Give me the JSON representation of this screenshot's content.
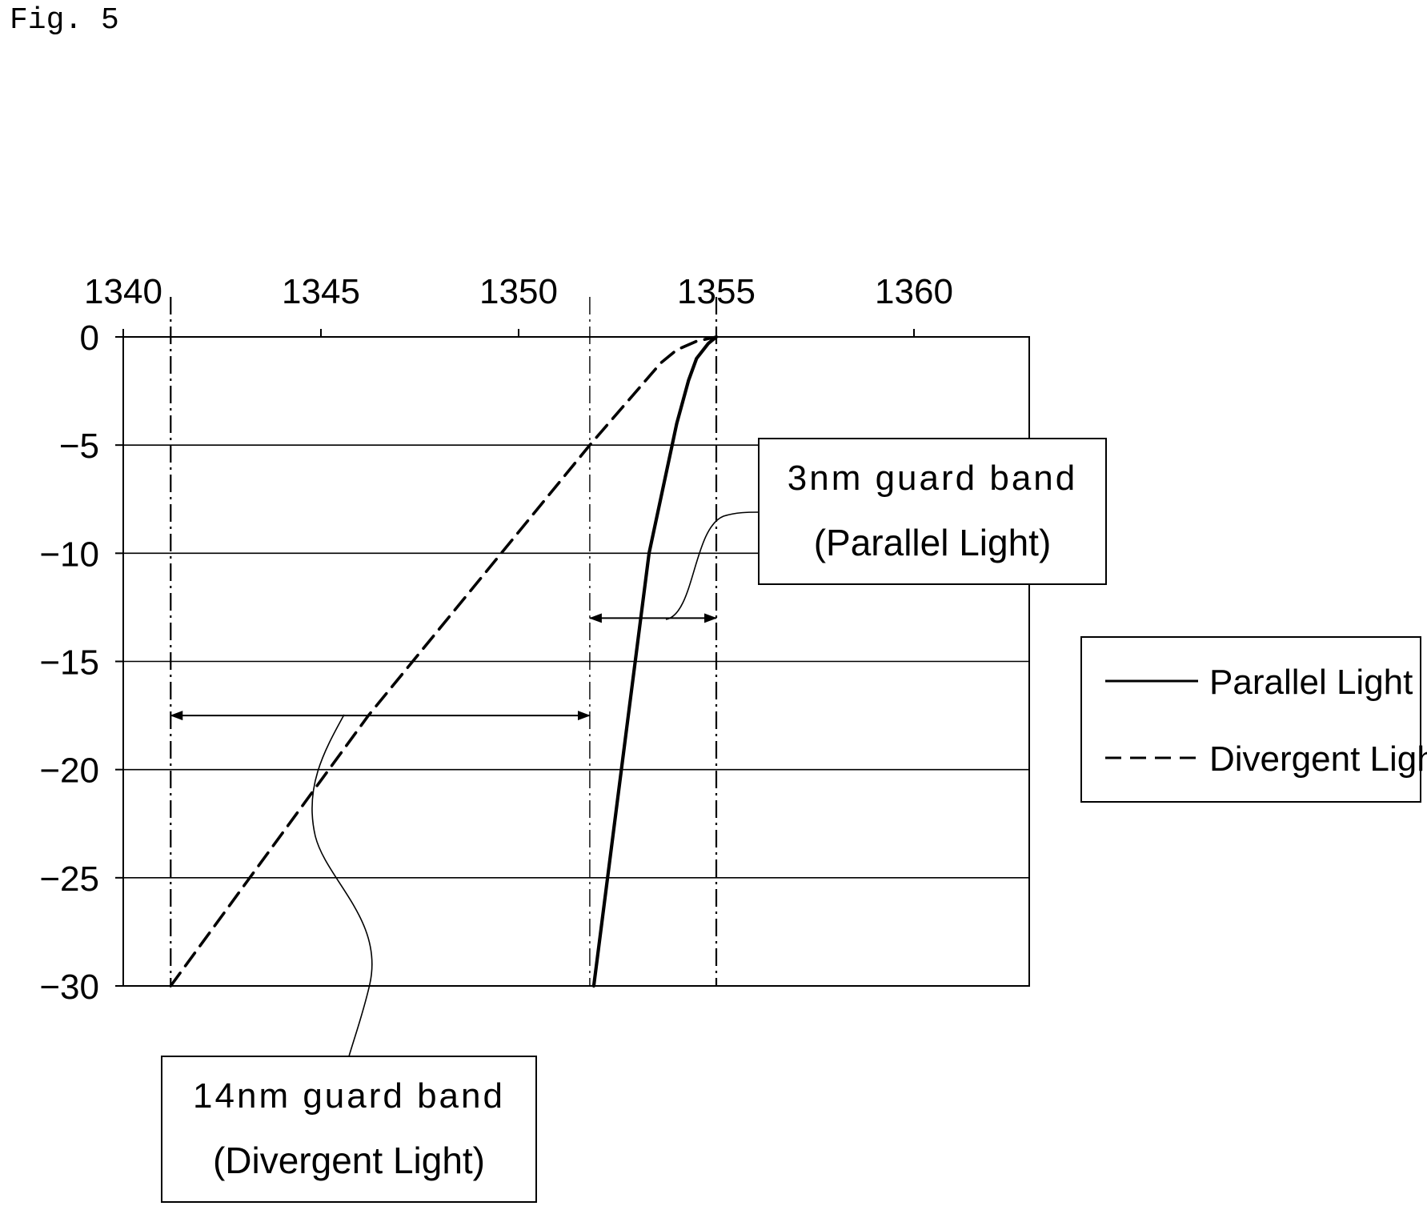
{
  "figure": {
    "label": "Fig. 5"
  },
  "chart_data": {
    "type": "line",
    "title": "",
    "xlabel": "",
    "ylabel": "",
    "x_axis_position": "top",
    "xlim": [
      1340,
      1363
    ],
    "ylim": [
      -30,
      0
    ],
    "x_ticks": [
      1340,
      1345,
      1350,
      1355,
      1360
    ],
    "y_ticks": [
      0,
      -5,
      -10,
      -15,
      -20,
      -25,
      -30
    ],
    "x_tick_labels": [
      "1340",
      "1345",
      "1350",
      "1355",
      "1360"
    ],
    "y_tick_labels": [
      "0",
      "−5",
      "−10",
      "−15",
      "−20",
      "−25",
      "−30"
    ],
    "grid": "horizontal",
    "series": [
      {
        "name": "Parallel Light",
        "style": "solid",
        "color": "#000000",
        "x": [
          1351.9,
          1352.6,
          1353.3,
          1354.0,
          1354.3,
          1354.5,
          1354.8,
          1355.0
        ],
        "y": [
          -30,
          -20,
          -10,
          -4,
          -2,
          -1,
          -0.3,
          0
        ]
      },
      {
        "name": "Divergent Light",
        "style": "dashed",
        "color": "#000000",
        "x": [
          1341.2,
          1346.2,
          1351.8,
          1353.6,
          1354.0,
          1354.5,
          1355.0
        ],
        "y": [
          -30,
          -17.5,
          -5,
          -1.2,
          -0.6,
          -0.2,
          0
        ]
      }
    ],
    "reference_lines": [
      {
        "axis": "x",
        "value": 1341.2,
        "style": "dash-dot"
      },
      {
        "axis": "x",
        "value": 1351.8,
        "style": "dash-dot"
      },
      {
        "axis": "x",
        "value": 1355.0,
        "style": "dash-dot"
      }
    ],
    "legend": {
      "placement": "right",
      "entries": [
        "Parallel Light",
        "Divergent Light"
      ]
    },
    "annotations": [
      {
        "line1": "3nm guard band",
        "line2": "(Parallel Light)",
        "span": [
          1351.8,
          1355.0
        ],
        "at_y": -13
      },
      {
        "line1": "14nm guard band",
        "line2": "(Divergent Light)",
        "span": [
          1341.2,
          1351.8
        ],
        "at_y": -17.5
      }
    ]
  }
}
